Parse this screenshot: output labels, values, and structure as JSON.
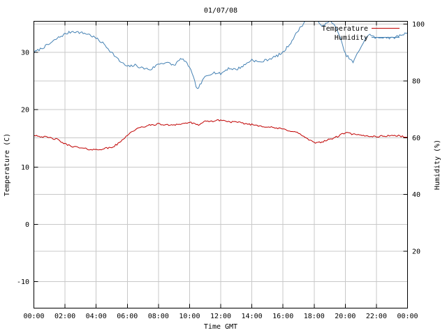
{
  "title": "01/07/08",
  "axes": {
    "left_label": "Temperature (C)",
    "right_label": "Humidity (%)",
    "x_label": "Time GMT"
  },
  "colors": {
    "background": "#ffffff",
    "grid": "#c8c8c8",
    "frame": "#000000",
    "temperature": "#c00000",
    "humidity": "#4682b4"
  },
  "chart_data": {
    "type": "line",
    "title": "01/07/08",
    "xlabel": "Time GMT",
    "grid": true,
    "legend_position": "top-right",
    "x_range": [
      0,
      24
    ],
    "x_tick_hours": [
      0,
      2,
      4,
      6,
      8,
      10,
      12,
      14,
      16,
      18,
      20,
      22,
      24
    ],
    "x_ticks": [
      "00:00",
      "02:00",
      "04:00",
      "06:00",
      "08:00",
      "10:00",
      "12:00",
      "14:00",
      "16:00",
      "18:00",
      "20:00",
      "22:00",
      "00:00"
    ],
    "left_axis": {
      "label": "Temperature (C)",
      "ticks": [
        -10,
        0,
        10,
        20,
        30
      ],
      "ylim": [
        -14.6,
        35.4
      ]
    },
    "right_axis": {
      "label": "Humidity (%)",
      "ticks": [
        20,
        40,
        60,
        80,
        100
      ],
      "ylim": [
        0,
        101
      ]
    },
    "x": [
      0,
      0.5,
      1,
      1.5,
      2,
      2.5,
      3,
      3.5,
      4,
      4.5,
      5,
      5.5,
      6,
      6.5,
      7,
      7.5,
      8,
      8.5,
      9,
      9.5,
      10,
      10.5,
      11,
      11.5,
      12,
      12.5,
      13,
      13.5,
      14,
      14.5,
      15,
      15.5,
      16,
      16.5,
      17,
      17.5,
      18,
      18.5,
      19,
      19.5,
      20,
      20.5,
      21,
      21.5,
      22,
      22.5,
      23,
      23.5,
      24
    ],
    "series": [
      {
        "name": "Temperature",
        "axis": "left",
        "color": "#c00000",
        "jitter": 0.15,
        "seed": 42,
        "values": [
          15.6,
          15.3,
          15.1,
          14.8,
          14.0,
          13.6,
          13.3,
          13.1,
          13.0,
          13.2,
          13.4,
          14.2,
          15.6,
          16.5,
          17.0,
          17.3,
          17.5,
          17.3,
          17.4,
          17.5,
          17.8,
          17.3,
          17.9,
          18.0,
          18.2,
          17.9,
          17.8,
          17.6,
          17.4,
          17.2,
          17.0,
          16.8,
          16.6,
          16.3,
          15.9,
          15.0,
          14.2,
          14.4,
          14.8,
          15.3,
          16.0,
          15.7,
          15.5,
          15.4,
          15.3,
          15.4,
          15.5,
          15.4,
          15.2
        ]
      },
      {
        "name": "Humidity",
        "axis": "right",
        "color": "#4682b4",
        "jitter": 0.45,
        "seed": 7,
        "values": [
          90.0,
          91.5,
          93.0,
          95.0,
          96.5,
          97.5,
          97.0,
          96.5,
          95.0,
          93.0,
          90.0,
          87.0,
          85.0,
          85.5,
          84.5,
          84.0,
          86.0,
          86.5,
          85.5,
          88.0,
          85.0,
          77.0,
          81.5,
          83.0,
          82.5,
          84.5,
          84.0,
          85.5,
          87.5,
          86.5,
          87.5,
          88.5,
          90.0,
          93.5,
          98.0,
          101.5,
          102.5,
          99.0,
          101.5,
          98.0,
          89.5,
          86.5,
          92.0,
          96.5,
          95.0,
          95.5,
          95.0,
          96.0,
          97.0
        ]
      }
    ]
  }
}
